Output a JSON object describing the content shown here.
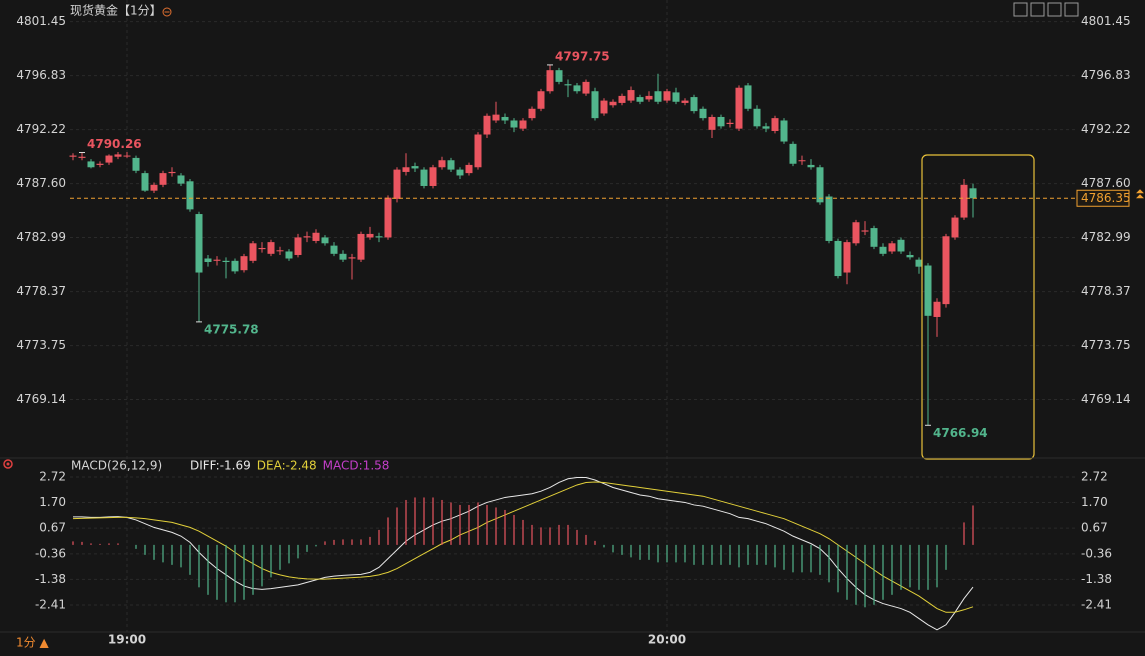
{
  "title": "现货黄金【1分】",
  "footer": {
    "period": "1分 ▲"
  },
  "chart_data": [
    {
      "type": "candlestick",
      "categories": [
        null,
        null,
        null,
        null,
        null,
        null,
        "19:00",
        null,
        null,
        null,
        null,
        null,
        null,
        null,
        null,
        null,
        null,
        null,
        null,
        null,
        null,
        null,
        null,
        null,
        null,
        null,
        null,
        null,
        null,
        null,
        null,
        null,
        null,
        null,
        null,
        null,
        null,
        null,
        null,
        null,
        null,
        null,
        null,
        null,
        null,
        null,
        null,
        null,
        null,
        null,
        null,
        null,
        null,
        null,
        null,
        null,
        null,
        null,
        null,
        null,
        null,
        null,
        null,
        null,
        null,
        null,
        "20:00",
        null,
        null,
        null,
        null,
        null,
        null,
        null,
        null,
        null,
        null,
        null,
        null,
        null,
        null,
        null,
        null,
        null,
        null,
        null,
        null,
        null,
        null,
        null,
        null,
        null,
        null,
        null,
        null,
        null,
        null,
        null,
        null,
        null,
        null
      ],
      "open": [
        4789.9,
        4789.8,
        4789.5,
        4789.2,
        4789.4,
        4789.9,
        4790.0,
        4789.8,
        4788.5,
        4787.0,
        4787.5,
        4788.5,
        4788.3,
        4787.8,
        4785.0,
        4781.2,
        4781.0,
        4781.0,
        4781.0,
        4780.2,
        4781.0,
        4782.0,
        4781.6,
        4781.9,
        4781.8,
        4781.5,
        4783.0,
        4782.7,
        4783.0,
        4782.3,
        4781.6,
        4781.2,
        4781.1,
        4783.0,
        4783.1,
        4783.0,
        4786.3,
        4788.6,
        4789.1,
        4788.8,
        4787.4,
        4789.0,
        4789.6,
        4788.8,
        4788.5,
        4789.0,
        4791.8,
        4793.0,
        4793.3,
        4793.0,
        4792.3,
        4793.2,
        4794.0,
        4795.5,
        4797.3,
        4796.1,
        4796.0,
        4795.3,
        4795.5,
        4793.6,
        4794.3,
        4794.5,
        4794.7,
        4795.0,
        4794.8,
        4795.5,
        4794.7,
        4795.4,
        4794.5,
        4795.0,
        4794.0,
        4792.2,
        4793.3,
        4792.7,
        4792.3,
        4796.0,
        4794.0,
        4792.5,
        4792.1,
        4793.0,
        4791.0,
        4789.6,
        4789.2,
        4789.0,
        4786.5,
        4782.7,
        4780.0,
        4782.5,
        4783.5,
        4783.8,
        4782.2,
        4781.8,
        4782.8,
        4781.5,
        4781.1,
        4780.6,
        4776.2,
        4777.3,
        4783.0,
        4784.7,
        4787.2
      ],
      "high": [
        4790.2,
        4790.26,
        4789.7,
        4789.5,
        4790.1,
        4790.3,
        4790.3,
        4790.0,
        4788.7,
        4787.7,
        4788.7,
        4789.0,
        4788.5,
        4788.0,
        4785.2,
        4781.5,
        4781.4,
        4781.3,
        4781.2,
        4781.6,
        4782.7,
        4782.6,
        4782.8,
        4782.2,
        4782.0,
        4783.3,
        4783.5,
        4783.7,
        4783.2,
        4782.6,
        4781.9,
        4781.6,
        4783.5,
        4783.9,
        4783.4,
        4786.6,
        4789.0,
        4790.2,
        4789.4,
        4789.0,
        4789.2,
        4789.9,
        4789.8,
        4789.0,
        4789.4,
        4792.0,
        4793.6,
        4794.6,
        4793.6,
        4793.2,
        4793.2,
        4794.2,
        4795.7,
        4797.75,
        4797.5,
        4796.5,
        4796.2,
        4796.5,
        4795.8,
        4794.9,
        4794.8,
        4795.3,
        4795.9,
        4795.2,
        4795.5,
        4797.0,
        4795.7,
        4795.8,
        4794.9,
        4795.2,
        4794.2,
        4793.5,
        4793.5,
        4793.1,
        4796.0,
        4796.2,
        4794.3,
        4792.8,
        4793.4,
        4793.2,
        4791.2,
        4790.0,
        4789.7,
        4789.2,
        4786.7,
        4782.9,
        4782.8,
        4784.5,
        4784.4,
        4784.0,
        4782.5,
        4782.7,
        4783.0,
        4781.8,
        4781.3,
        4780.8,
        4777.8,
        4783.3,
        4784.9,
        4788.0,
        4787.6
      ],
      "low": [
        4789.6,
        4789.6,
        4788.9,
        4789.0,
        4789.2,
        4789.7,
        4789.8,
        4788.5,
        4786.9,
        4786.8,
        4787.3,
        4788.2,
        4787.4,
        4785.2,
        4775.78,
        4780.5,
        4780.6,
        4779.5,
        4779.9,
        4780.0,
        4780.8,
        4781.7,
        4781.4,
        4781.5,
        4781.0,
        4781.3,
        4782.6,
        4782.5,
        4782.3,
        4781.4,
        4780.9,
        4779.4,
        4780.9,
        4782.8,
        4782.6,
        4782.8,
        4786.0,
        4788.3,
        4788.6,
        4787.2,
        4787.2,
        4788.8,
        4788.6,
        4788.0,
        4788.3,
        4788.8,
        4791.5,
        4792.8,
        4792.7,
        4792.0,
        4792.1,
        4793.0,
        4793.8,
        4795.3,
        4796.1,
        4795.0,
        4795.3,
        4795.1,
        4793.0,
        4793.4,
        4794.1,
        4794.3,
        4794.5,
        4794.4,
        4794.6,
        4794.4,
        4794.5,
        4794.4,
        4794.3,
        4793.6,
        4793.0,
        4791.5,
        4792.3,
        4792.4,
        4792.1,
        4793.8,
        4792.3,
        4792.0,
        4791.9,
        4791.0,
        4789.1,
        4789.2,
        4788.8,
        4785.8,
        4782.5,
        4779.5,
        4779.0,
        4782.3,
        4783.2,
        4782.0,
        4781.4,
        4781.6,
        4781.6,
        4781.1,
        4779.9,
        4766.94,
        4774.5,
        4777.0,
        4782.8,
        4784.5,
        4784.7
      ],
      "close": [
        4790.0,
        4789.9,
        4789.0,
        4789.3,
        4790.0,
        4790.1,
        4790.0,
        4788.7,
        4787.0,
        4787.5,
        4788.5,
        4788.6,
        4787.6,
        4785.4,
        4780.0,
        4780.9,
        4781.1,
        4780.9,
        4780.1,
        4781.4,
        4782.5,
        4782.1,
        4782.6,
        4781.9,
        4781.2,
        4783.0,
        4783.1,
        4783.4,
        4782.5,
        4781.6,
        4781.1,
        4781.3,
        4783.3,
        4783.3,
        4783.0,
        4786.4,
        4788.8,
        4789.0,
        4788.9,
        4787.4,
        4789.0,
        4789.6,
        4788.8,
        4788.3,
        4789.2,
        4791.8,
        4793.4,
        4793.5,
        4793.0,
        4792.4,
        4793.0,
        4794.0,
        4795.5,
        4797.3,
        4796.3,
        4796.0,
        4795.5,
        4796.3,
        4793.2,
        4794.7,
        4794.6,
        4795.1,
        4795.6,
        4794.6,
        4795.1,
        4794.6,
        4795.5,
        4794.6,
        4794.7,
        4793.8,
        4793.2,
        4793.3,
        4792.5,
        4792.8,
        4795.8,
        4794.0,
        4792.5,
        4792.3,
        4793.2,
        4791.2,
        4789.3,
        4789.6,
        4789.0,
        4786.0,
        4782.7,
        4779.7,
        4782.6,
        4784.3,
        4783.6,
        4782.2,
        4781.6,
        4782.5,
        4781.8,
        4781.3,
        4780.5,
        4776.3,
        4777.5,
        4783.1,
        4784.7,
        4787.5,
        4786.35
      ],
      "up_color": "#ea5560",
      "down_color": "#52b58c",
      "last_price_color": "#f0a030",
      "ylim": [
        4764.4,
        4803.3
      ],
      "yticks": [
        4801.45,
        4796.83,
        4792.22,
        {
          "value": 4787.6,
          "label": "4787.60"
        },
        4782.99,
        4778.37,
        4773.75,
        4769.14
      ],
      "grid": true
    },
    {
      "type": "macd",
      "title": "MACD(26,12,9)",
      "series": [
        {
          "name": "DIFF:-1.69",
          "color": "#e8e8e8",
          "values": [
            1.12,
            1.12,
            1.1,
            1.1,
            1.12,
            1.13,
            1.1,
            1.0,
            0.85,
            0.7,
            0.6,
            0.5,
            0.35,
            0.1,
            -0.3,
            -0.65,
            -0.95,
            -1.2,
            -1.45,
            -1.65,
            -1.75,
            -1.78,
            -1.75,
            -1.7,
            -1.65,
            -1.6,
            -1.5,
            -1.4,
            -1.3,
            -1.25,
            -1.22,
            -1.2,
            -1.18,
            -1.1,
            -0.9,
            -0.55,
            -0.2,
            0.15,
            0.4,
            0.6,
            0.8,
            0.95,
            1.05,
            1.2,
            1.35,
            1.55,
            1.7,
            1.8,
            1.9,
            1.95,
            2.0,
            2.05,
            2.15,
            2.3,
            2.5,
            2.65,
            2.7,
            2.7,
            2.6,
            2.45,
            2.3,
            2.2,
            2.1,
            2.0,
            1.95,
            1.85,
            1.8,
            1.75,
            1.7,
            1.6,
            1.55,
            1.45,
            1.35,
            1.25,
            1.1,
            1.05,
            0.95,
            0.85,
            0.7,
            0.55,
            0.35,
            0.2,
            0.05,
            -0.15,
            -0.5,
            -0.95,
            -1.35,
            -1.7,
            -2.0,
            -2.2,
            -2.35,
            -2.45,
            -2.55,
            -2.7,
            -2.95,
            -3.2,
            -3.4,
            -3.2,
            -2.7,
            -2.15,
            -1.69
          ]
        },
        {
          "name": "DEA:-2.48",
          "color": "#e2d03a",
          "values": [
            1.05,
            1.06,
            1.07,
            1.08,
            1.09,
            1.1,
            1.1,
            1.08,
            1.05,
            1.0,
            0.95,
            0.9,
            0.8,
            0.7,
            0.55,
            0.35,
            0.15,
            -0.05,
            -0.3,
            -0.55,
            -0.75,
            -0.95,
            -1.1,
            -1.2,
            -1.28,
            -1.33,
            -1.36,
            -1.37,
            -1.37,
            -1.35,
            -1.33,
            -1.31,
            -1.29,
            -1.26,
            -1.2,
            -1.1,
            -0.95,
            -0.75,
            -0.55,
            -0.35,
            -0.15,
            0.05,
            0.2,
            0.4,
            0.55,
            0.7,
            0.9,
            1.05,
            1.2,
            1.35,
            1.5,
            1.65,
            1.8,
            1.95,
            2.1,
            2.25,
            2.4,
            2.5,
            2.52,
            2.5,
            2.45,
            2.4,
            2.35,
            2.3,
            2.25,
            2.2,
            2.15,
            2.1,
            2.05,
            2.0,
            1.95,
            1.85,
            1.75,
            1.65,
            1.55,
            1.45,
            1.35,
            1.25,
            1.15,
            1.05,
            0.9,
            0.75,
            0.6,
            0.45,
            0.25,
            0.0,
            -0.25,
            -0.5,
            -0.75,
            -1.0,
            -1.25,
            -1.45,
            -1.65,
            -1.85,
            -2.05,
            -2.3,
            -2.55,
            -2.7,
            -2.7,
            -2.6,
            -2.48
          ]
        },
        {
          "name": "MACD:1.58",
          "color": "#c23fc8",
          "style": "histogram",
          "values": [
            0.14,
            0.12,
            0.06,
            0.04,
            0.06,
            0.06,
            0.0,
            -0.16,
            -0.4,
            -0.6,
            -0.7,
            -0.8,
            -0.9,
            -1.2,
            -1.7,
            -2.0,
            -2.2,
            -2.3,
            -2.3,
            -2.2,
            -2.0,
            -1.66,
            -1.3,
            -1.0,
            -0.74,
            -0.54,
            -0.28,
            -0.06,
            0.14,
            0.2,
            0.22,
            0.22,
            0.22,
            0.32,
            0.6,
            1.1,
            1.5,
            1.8,
            1.9,
            1.9,
            1.9,
            1.8,
            1.7,
            1.6,
            1.6,
            1.7,
            1.6,
            1.5,
            1.4,
            1.2,
            1.0,
            0.8,
            0.7,
            0.7,
            0.8,
            0.8,
            0.6,
            0.4,
            0.16,
            -0.1,
            -0.3,
            -0.4,
            -0.5,
            -0.6,
            -0.6,
            -0.7,
            -0.7,
            -0.7,
            -0.7,
            -0.8,
            -0.8,
            -0.8,
            -0.8,
            -0.8,
            -0.9,
            -0.8,
            -0.8,
            -0.8,
            -0.9,
            -1.0,
            -1.1,
            -1.1,
            -1.1,
            -1.2,
            -1.5,
            -1.9,
            -2.2,
            -2.4,
            -2.5,
            -2.4,
            -2.2,
            -2.0,
            -1.8,
            -1.7,
            -1.8,
            -1.8,
            -1.7,
            -1.0,
            0.0,
            0.9,
            1.58
          ]
        }
      ],
      "ylim": [
        -3.81,
        3.2
      ],
      "yticks": [
        2.72,
        {
          "value": 1.7,
          "label": "1.70"
        },
        0.67,
        -0.36,
        -1.38,
        -2.41
      ]
    }
  ]
}
